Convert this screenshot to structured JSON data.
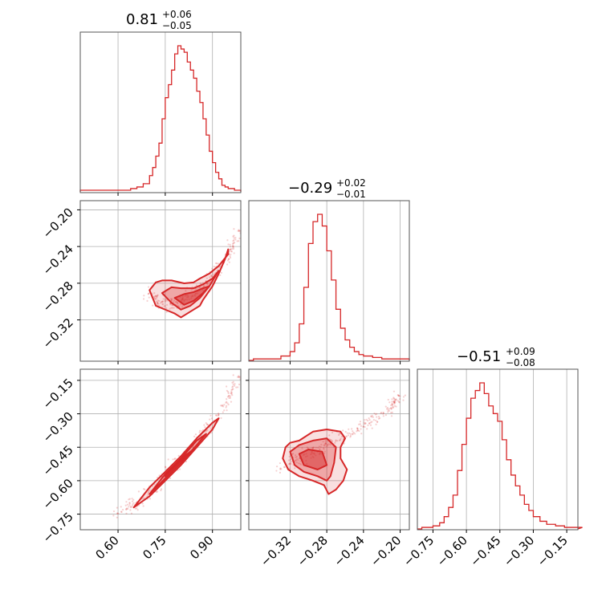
{
  "figure": {
    "type": "corner-plot",
    "color": "#d62728",
    "grid_color": "#b0b0b0"
  },
  "titles": [
    {
      "main": "0.81",
      "plus": "+0.06",
      "minus": "−0.05"
    },
    {
      "main": "−0.29",
      "plus": "+0.02",
      "minus": "−0.01"
    },
    {
      "main": "−0.51",
      "plus": "+0.09",
      "minus": "−0.08"
    }
  ],
  "chart_data": [
    {
      "type": "histogram",
      "panel": "p0-hist",
      "xlim": [
        0.48,
        0.99
      ],
      "grid": true,
      "x": [
        0.48,
        0.5,
        0.52,
        0.54,
        0.56,
        0.58,
        0.6,
        0.62,
        0.64,
        0.66,
        0.68,
        0.7,
        0.71,
        0.72,
        0.73,
        0.74,
        0.75,
        0.76,
        0.77,
        0.78,
        0.79,
        0.8,
        0.81,
        0.82,
        0.83,
        0.84,
        0.85,
        0.86,
        0.87,
        0.88,
        0.89,
        0.9,
        0.91,
        0.92,
        0.93,
        0.94,
        0.95,
        0.96,
        0.97,
        0.98
      ],
      "counts": [
        1,
        1,
        1,
        1,
        1,
        1,
        1,
        1,
        2,
        3,
        5,
        10,
        15,
        22,
        30,
        45,
        58,
        66,
        75,
        85,
        90,
        88,
        86,
        80,
        75,
        70,
        62,
        55,
        45,
        35,
        25,
        18,
        12,
        8,
        4,
        3,
        2,
        2,
        1,
        1
      ]
    },
    {
      "type": "histogram",
      "panel": "p1-hist",
      "xlim": [
        -0.365,
        -0.19
      ],
      "grid": true,
      "x": [
        -0.36,
        -0.35,
        -0.34,
        -0.33,
        -0.32,
        -0.315,
        -0.31,
        -0.305,
        -0.3,
        -0.295,
        -0.29,
        -0.285,
        -0.28,
        -0.275,
        -0.27,
        -0.265,
        -0.26,
        -0.255,
        -0.25,
        -0.245,
        -0.24,
        -0.23,
        -0.22,
        -0.21,
        -0.2
      ],
      "counts": [
        1,
        1,
        1,
        3,
        6,
        12,
        25,
        50,
        80,
        95,
        100,
        92,
        75,
        55,
        35,
        22,
        14,
        9,
        6,
        4,
        3,
        2,
        1,
        1,
        1
      ]
    },
    {
      "type": "histogram",
      "panel": "p2-hist",
      "xlim": [
        -0.82,
        -0.1
      ],
      "grid": true,
      "x": [
        -0.8,
        -0.75,
        -0.72,
        -0.7,
        -0.68,
        -0.66,
        -0.64,
        -0.62,
        -0.6,
        -0.58,
        -0.56,
        -0.54,
        -0.52,
        -0.5,
        -0.48,
        -0.46,
        -0.44,
        -0.42,
        -0.4,
        -0.38,
        -0.36,
        -0.34,
        -0.32,
        -0.3,
        -0.27,
        -0.24,
        -0.2,
        -0.16,
        -0.12
      ],
      "counts": [
        1,
        2,
        4,
        8,
        14,
        22,
        38,
        55,
        72,
        85,
        90,
        95,
        88,
        80,
        75,
        70,
        58,
        45,
        35,
        28,
        22,
        16,
        12,
        8,
        5,
        3,
        2,
        1,
        1
      ]
    },
    {
      "type": "scatter-contour",
      "panel": "p10-2d",
      "xlim": [
        0.48,
        0.99
      ],
      "ylim": [
        -0.355,
        -0.19
      ],
      "grid": true,
      "ridge": {
        "x": [
          0.7,
          0.73,
          0.76,
          0.8,
          0.84,
          0.87,
          0.9,
          0.93,
          0.96,
          0.99
        ],
        "y": [
          -0.285,
          -0.293,
          -0.296,
          -0.294,
          -0.287,
          -0.278,
          -0.268,
          -0.255,
          -0.24,
          -0.22
        ]
      },
      "levels": [
        {
          "x": [
            0.7,
            0.72,
            0.75,
            0.78,
            0.8,
            0.83,
            0.86,
            0.87,
            0.9,
            0.92,
            0.94,
            0.95,
            0.95,
            0.92,
            0.89,
            0.86,
            0.84,
            0.81,
            0.77,
            0.74,
            0.72,
            0.7
          ],
          "y": [
            -0.282,
            -0.298,
            -0.302,
            -0.306,
            -0.31,
            -0.304,
            -0.298,
            -0.292,
            -0.278,
            -0.265,
            -0.25,
            -0.24,
            -0.245,
            -0.257,
            -0.265,
            -0.27,
            -0.274,
            -0.275,
            -0.272,
            -0.272,
            -0.274,
            -0.282
          ]
        },
        {
          "x": [
            0.74,
            0.77,
            0.8,
            0.83,
            0.86,
            0.89,
            0.92,
            0.9,
            0.87,
            0.84,
            0.8,
            0.77,
            0.74
          ],
          "y": [
            -0.285,
            -0.295,
            -0.302,
            -0.298,
            -0.29,
            -0.278,
            -0.262,
            -0.27,
            -0.276,
            -0.28,
            -0.28,
            -0.279,
            -0.285
          ]
        },
        {
          "x": [
            0.78,
            0.81,
            0.84,
            0.87,
            0.89,
            0.87,
            0.84,
            0.81,
            0.78
          ],
          "y": [
            -0.29,
            -0.297,
            -0.293,
            -0.285,
            -0.278,
            -0.28,
            -0.284,
            -0.286,
            -0.29
          ]
        }
      ]
    },
    {
      "type": "scatter-contour",
      "panel": "p20-2d",
      "xlim": [
        0.48,
        0.99
      ],
      "ylim": [
        -0.82,
        -0.1
      ],
      "grid": true,
      "ridge": {
        "x": [
          0.6,
          0.65,
          0.7,
          0.75,
          0.8,
          0.85,
          0.9,
          0.95,
          0.99
        ],
        "y": [
          -0.75,
          -0.71,
          -0.65,
          -0.58,
          -0.51,
          -0.43,
          -0.34,
          -0.23,
          -0.13
        ]
      },
      "levels": [
        {
          "x": [
            0.65,
            0.7,
            0.75,
            0.8,
            0.85,
            0.9,
            0.92,
            0.9,
            0.85,
            0.8,
            0.75,
            0.7,
            0.65
          ],
          "y": [
            -0.72,
            -0.67,
            -0.6,
            -0.53,
            -0.45,
            -0.37,
            -0.32,
            -0.34,
            -0.41,
            -0.49,
            -0.56,
            -0.63,
            -0.72
          ]
        },
        {
          "x": [
            0.7,
            0.75,
            0.8,
            0.85,
            0.88,
            0.85,
            0.8,
            0.75,
            0.7
          ],
          "y": [
            -0.66,
            -0.59,
            -0.52,
            -0.44,
            -0.39,
            -0.42,
            -0.5,
            -0.57,
            -0.66
          ]
        },
        {
          "x": [
            0.75,
            0.8,
            0.84,
            0.8,
            0.75
          ],
          "y": [
            -0.58,
            -0.51,
            -0.46,
            -0.5,
            -0.58
          ]
        }
      ]
    },
    {
      "type": "scatter-contour",
      "panel": "p21-2d",
      "xlim": [
        -0.365,
        -0.19
      ],
      "ylim": [
        -0.82,
        -0.1
      ],
      "grid": true,
      "ridge": {
        "x": [
          -0.33,
          -0.31,
          -0.29,
          -0.27,
          -0.25,
          -0.23,
          -0.21,
          -0.2
        ],
        "y": [
          -0.55,
          -0.5,
          -0.46,
          -0.42,
          -0.38,
          -0.33,
          -0.27,
          -0.22
        ]
      },
      "levels": [
        {
          "x": [
            -0.325,
            -0.32,
            -0.31,
            -0.295,
            -0.28,
            -0.265,
            -0.26,
            -0.265,
            -0.265,
            -0.258,
            -0.262,
            -0.27,
            -0.278,
            -0.283,
            -0.295,
            -0.31,
            -0.322,
            -0.328,
            -0.325
          ],
          "y": [
            -0.45,
            -0.43,
            -0.42,
            -0.38,
            -0.37,
            -0.38,
            -0.41,
            -0.45,
            -0.5,
            -0.55,
            -0.6,
            -0.64,
            -0.66,
            -0.62,
            -0.6,
            -0.58,
            -0.55,
            -0.5,
            -0.45
          ]
        },
        {
          "x": [
            -0.32,
            -0.31,
            -0.295,
            -0.28,
            -0.27,
            -0.272,
            -0.276,
            -0.28,
            -0.29,
            -0.305,
            -0.315,
            -0.32
          ],
          "y": [
            -0.47,
            -0.44,
            -0.42,
            -0.41,
            -0.45,
            -0.52,
            -0.58,
            -0.6,
            -0.58,
            -0.56,
            -0.53,
            -0.47
          ]
        },
        {
          "x": [
            -0.31,
            -0.3,
            -0.285,
            -0.28,
            -0.29,
            -0.305,
            -0.31
          ],
          "y": [
            -0.48,
            -0.46,
            -0.47,
            -0.53,
            -0.55,
            -0.53,
            -0.48
          ]
        }
      ]
    }
  ],
  "axes": {
    "p1_yticks": [
      {
        "v": -0.2,
        "label": "−0.20"
      },
      {
        "v": -0.24,
        "label": "−0.24"
      },
      {
        "v": -0.28,
        "label": "−0.28"
      },
      {
        "v": -0.32,
        "label": "−0.32"
      }
    ],
    "p2_yticks": [
      {
        "v": -0.15,
        "label": "−0.15"
      },
      {
        "v": -0.3,
        "label": "−0.30"
      },
      {
        "v": -0.45,
        "label": "−0.45"
      },
      {
        "v": -0.6,
        "label": "−0.60"
      },
      {
        "v": -0.75,
        "label": "−0.75"
      }
    ],
    "p0_xticks": [
      {
        "v": 0.6,
        "label": "0.60"
      },
      {
        "v": 0.75,
        "label": "0.75"
      },
      {
        "v": 0.9,
        "label": "0.90"
      }
    ],
    "p1_xticks": [
      {
        "v": -0.32,
        "label": "−0.32"
      },
      {
        "v": -0.28,
        "label": "−0.28"
      },
      {
        "v": -0.24,
        "label": "−0.24"
      },
      {
        "v": -0.2,
        "label": "−0.20"
      }
    ],
    "p2_xticks": [
      {
        "v": -0.75,
        "label": "−0.75"
      },
      {
        "v": -0.6,
        "label": "−0.60"
      },
      {
        "v": -0.45,
        "label": "−0.45"
      },
      {
        "v": -0.3,
        "label": "−0.30"
      },
      {
        "v": -0.15,
        "label": "−0.15"
      }
    ]
  }
}
